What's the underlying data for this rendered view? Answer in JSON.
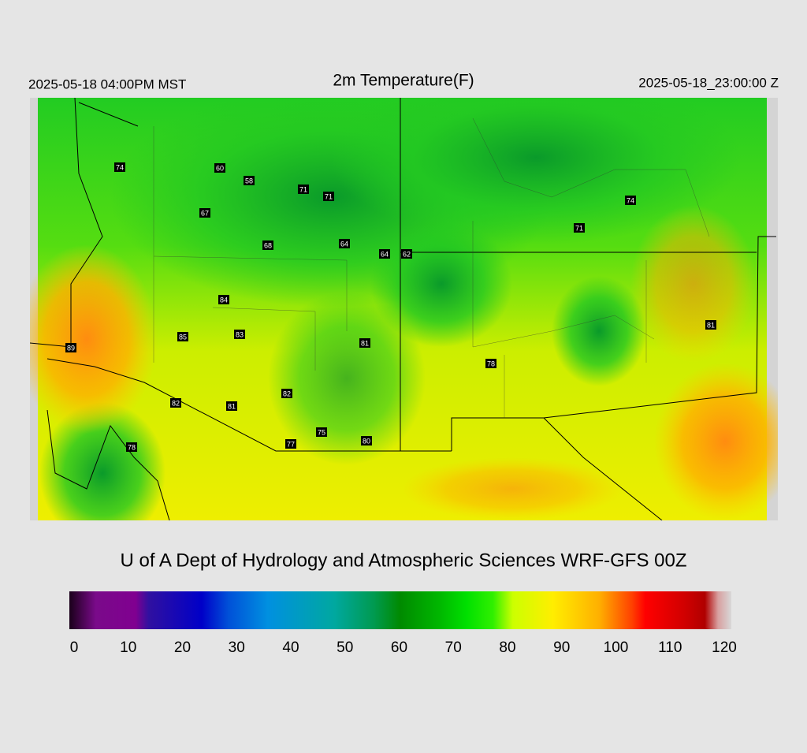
{
  "header": {
    "local_time": "2025-05-18 04:00PM MST",
    "title": "2m Temperature(F)",
    "valid_time": "2025-05-18_23:00:00 Z"
  },
  "stations": [
    "74",
    "60",
    "58",
    "71",
    "71",
    "67",
    "68",
    "64",
    "64",
    "62",
    "74",
    "71",
    "84",
    "85",
    "83",
    "81",
    "89",
    "81",
    "78",
    "82",
    "82",
    "81",
    "75",
    "77",
    "80",
    "78"
  ],
  "credit": "U of A Dept of Hydrology and Atmospheric Sciences WRF-GFS 00Z",
  "colorbar": {
    "ticks": [
      0,
      10,
      20,
      30,
      40,
      50,
      60,
      70,
      80,
      90,
      100,
      110,
      120
    ]
  }
}
